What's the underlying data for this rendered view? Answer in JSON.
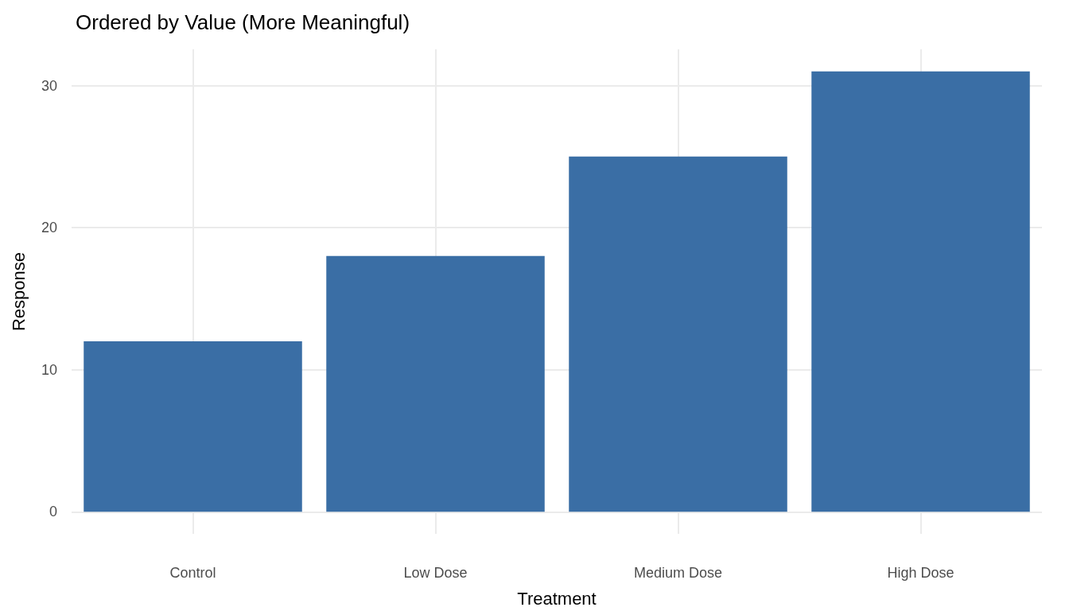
{
  "chart_data": {
    "type": "bar",
    "title": "Ordered by Value (More Meaningful)",
    "xlabel": "Treatment",
    "ylabel": "Response",
    "categories": [
      "Control",
      "Low Dose",
      "Medium Dose",
      "High Dose"
    ],
    "values": [
      12,
      18,
      25,
      31
    ],
    "color": "#3a6ea5",
    "ylim": [
      -1.55,
      32.55
    ],
    "yticks": [
      0,
      10,
      20,
      30
    ],
    "grid": true
  }
}
